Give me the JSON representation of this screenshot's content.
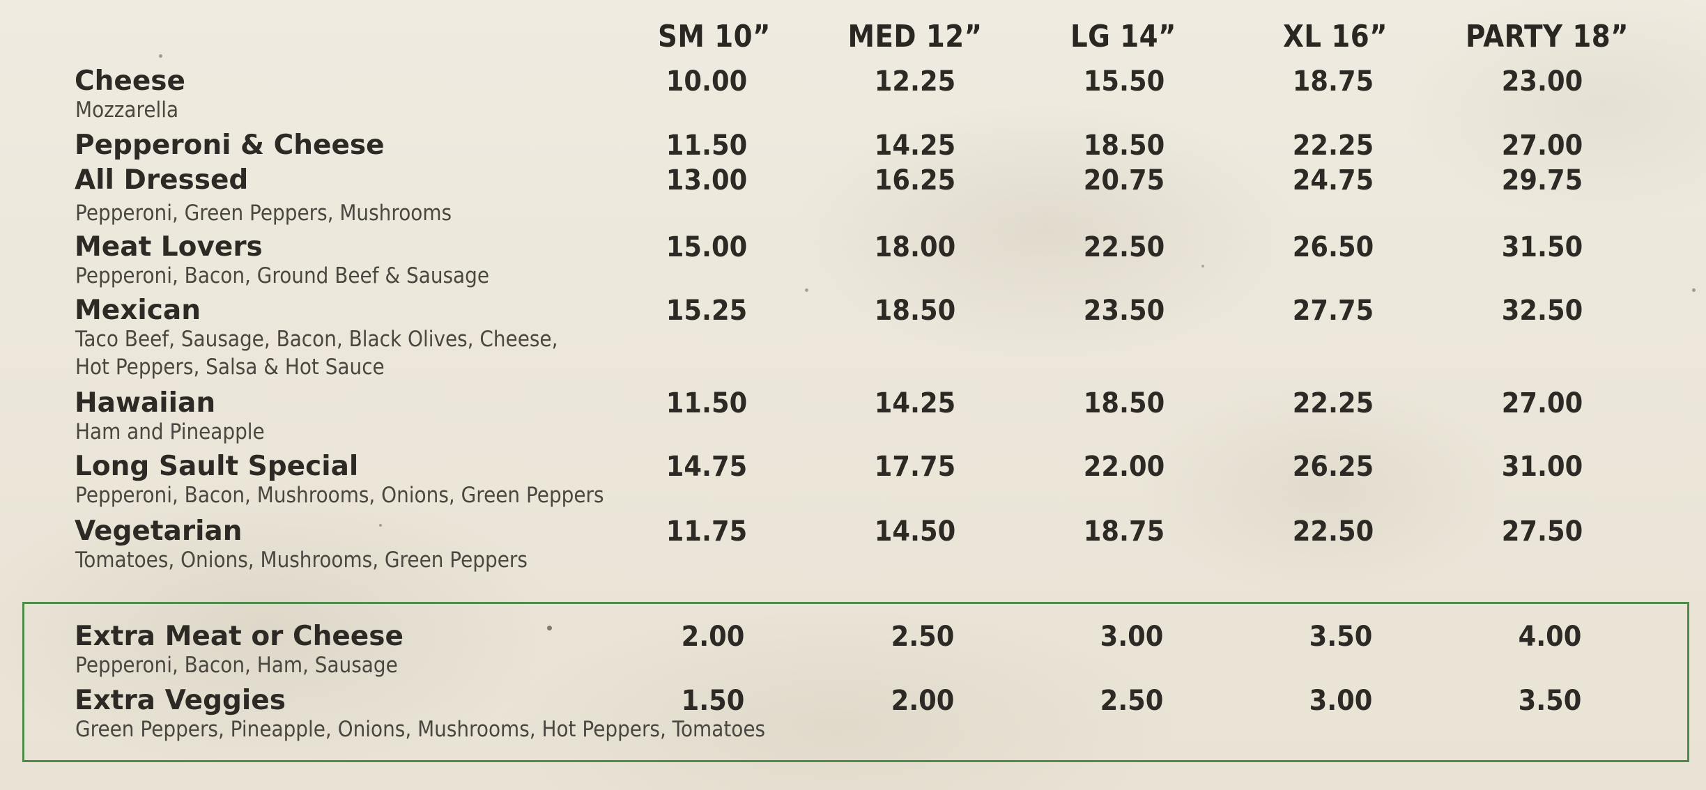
{
  "sizes": [
    "SM 10”",
    "MED 12”",
    "LG 14”",
    "XL 16”",
    "PARTY 18”"
  ],
  "pizzas": [
    {
      "name": "Cheese",
      "desc": [
        "Mozzarella"
      ],
      "prices": [
        "10.00",
        "12.25",
        "15.50",
        "18.75",
        "23.00"
      ]
    },
    {
      "name": "Pepperoni & Cheese",
      "desc": [],
      "prices": [
        "11.50",
        "14.25",
        "18.50",
        "22.25",
        "27.00"
      ]
    },
    {
      "name": "All Dressed",
      "desc": [
        "Pepperoni, Green Peppers, Mushrooms"
      ],
      "prices": [
        "13.00",
        "16.25",
        "20.75",
        "24.75",
        "29.75"
      ]
    },
    {
      "name": "Meat Lovers",
      "desc": [
        "Pepperoni, Bacon, Ground Beef & Sausage"
      ],
      "prices": [
        "15.00",
        "18.00",
        "22.50",
        "26.50",
        "31.50"
      ]
    },
    {
      "name": "Mexican",
      "desc": [
        "Taco Beef, Sausage, Bacon, Black Olives, Cheese,",
        "Hot Peppers, Salsa & Hot Sauce"
      ],
      "prices": [
        "15.25",
        "18.50",
        "23.50",
        "27.75",
        "32.50"
      ]
    },
    {
      "name": "Hawaiian",
      "desc": [
        "Ham and Pineapple"
      ],
      "prices": [
        "11.50",
        "14.25",
        "18.50",
        "22.25",
        "27.00"
      ]
    },
    {
      "name": "Long Sault Special",
      "desc": [
        "Pepperoni, Bacon, Mushrooms, Onions, Green Peppers"
      ],
      "prices": [
        "14.75",
        "17.75",
        "22.00",
        "26.25",
        "31.00"
      ]
    },
    {
      "name": "Vegetarian",
      "desc": [
        "Tomatoes, Onions, Mushrooms, Green Peppers"
      ],
      "prices": [
        "11.75",
        "14.50",
        "18.75",
        "22.50",
        "27.50"
      ]
    }
  ],
  "extras": [
    {
      "name": "Extra Meat or Cheese",
      "desc": [
        "Pepperoni, Bacon, Ham, Sausage"
      ],
      "prices": [
        "2.00",
        "2.50",
        "3.00",
        "3.50",
        "4.00"
      ]
    },
    {
      "name": "Extra Veggies",
      "desc": [
        "Green Peppers, Pineapple, Onions, Mushrooms, Hot Peppers, Tomatoes"
      ],
      "prices": [
        "1.50",
        "2.00",
        "2.50",
        "3.00",
        "3.50"
      ]
    }
  ],
  "colors": {
    "paper": "#ede8dc",
    "text": "#2d2a26",
    "description": "#4a4640",
    "box_border": "#4e8c4c"
  }
}
